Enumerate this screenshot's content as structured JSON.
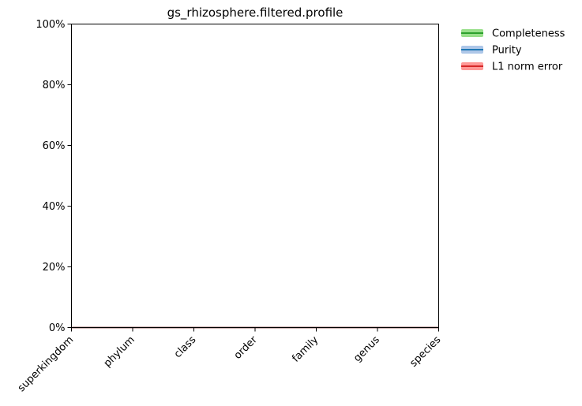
{
  "chart_data": {
    "type": "line",
    "title": "gs_rhizosphere.filtered.profile",
    "xlabel": "",
    "ylabel": "",
    "categories": [
      "superkingdom",
      "phylum",
      "class",
      "order",
      "family",
      "genus",
      "species"
    ],
    "ylim": [
      0,
      1
    ],
    "yticks": [
      0,
      0.2,
      0.4,
      0.6,
      0.8,
      1.0
    ],
    "ytick_labels": [
      "0%",
      "20%",
      "40%",
      "60%",
      "80%",
      "100%"
    ],
    "grid": false,
    "legend_position": "outside-top-right",
    "series": [
      {
        "name": "Completeness",
        "color": "#2ca02c",
        "band_color": "#98df8a",
        "values": [
          0,
          0,
          0,
          0,
          0,
          0,
          0
        ]
      },
      {
        "name": "Purity",
        "color": "#1f77b4",
        "band_color": "#aec7e8",
        "values": [
          0,
          0,
          0,
          0,
          0,
          0,
          0
        ]
      },
      {
        "name": "L1 norm error",
        "color": "#d62728",
        "band_color": "#ff9896",
        "values": [
          0,
          0,
          0,
          0,
          0,
          0,
          0
        ]
      }
    ]
  }
}
